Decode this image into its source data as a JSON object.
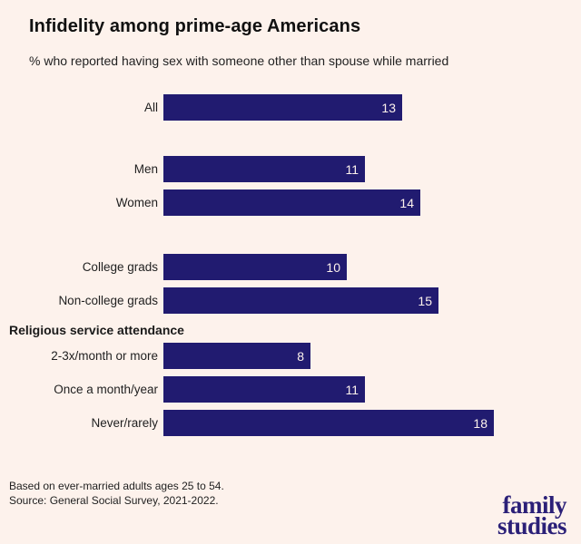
{
  "title": "Infidelity among prime-age Americans",
  "subtitle": "% who reported having sex with someone other than spouse while married",
  "footnotes": [
    "Based on ever-married adults ages 25 to 54.",
    "Source: General Social Survey, 2021-2022."
  ],
  "logo": {
    "line1": "family",
    "line2": "studies"
  },
  "colors": {
    "background": "#fdf2ec",
    "bar": "#211b70",
    "value_label": "#fdf2ec",
    "logo": "#2b2078",
    "title_text": "#111111",
    "body_text": "#1f1f1f"
  },
  "chart_data": {
    "type": "bar",
    "orientation": "horizontal",
    "title": "Infidelity among prime-age Americans",
    "subtitle": "% who reported having sex with someone other than spouse while married",
    "unit": "percent",
    "xlim": [
      0,
      20
    ],
    "grid": false,
    "legend": false,
    "value_labels": "inside-right",
    "categories": [
      "All",
      "Men",
      "Women",
      "College grads",
      "Non-college grads",
      "2-3x/month or more",
      "Once a month/year",
      "Never/rarely"
    ],
    "values": [
      13,
      11,
      14,
      10,
      15,
      8,
      11,
      18
    ],
    "groups": [
      {
        "rows": [
          {
            "label": "All",
            "value": 13
          }
        ]
      },
      {
        "rows": [
          {
            "label": "Men",
            "value": 11
          },
          {
            "label": "Women",
            "value": 14
          }
        ]
      },
      {
        "rows": [
          {
            "label": "College grads",
            "value": 10
          },
          {
            "label": "Non-college grads",
            "value": 15
          }
        ]
      },
      {
        "header": "Religious service attendance",
        "rows": [
          {
            "label": "2-3x/month or more",
            "value": 8
          },
          {
            "label": "Once a month/year",
            "value": 11
          },
          {
            "label": "Never/rarely",
            "value": 18
          }
        ]
      }
    ]
  }
}
